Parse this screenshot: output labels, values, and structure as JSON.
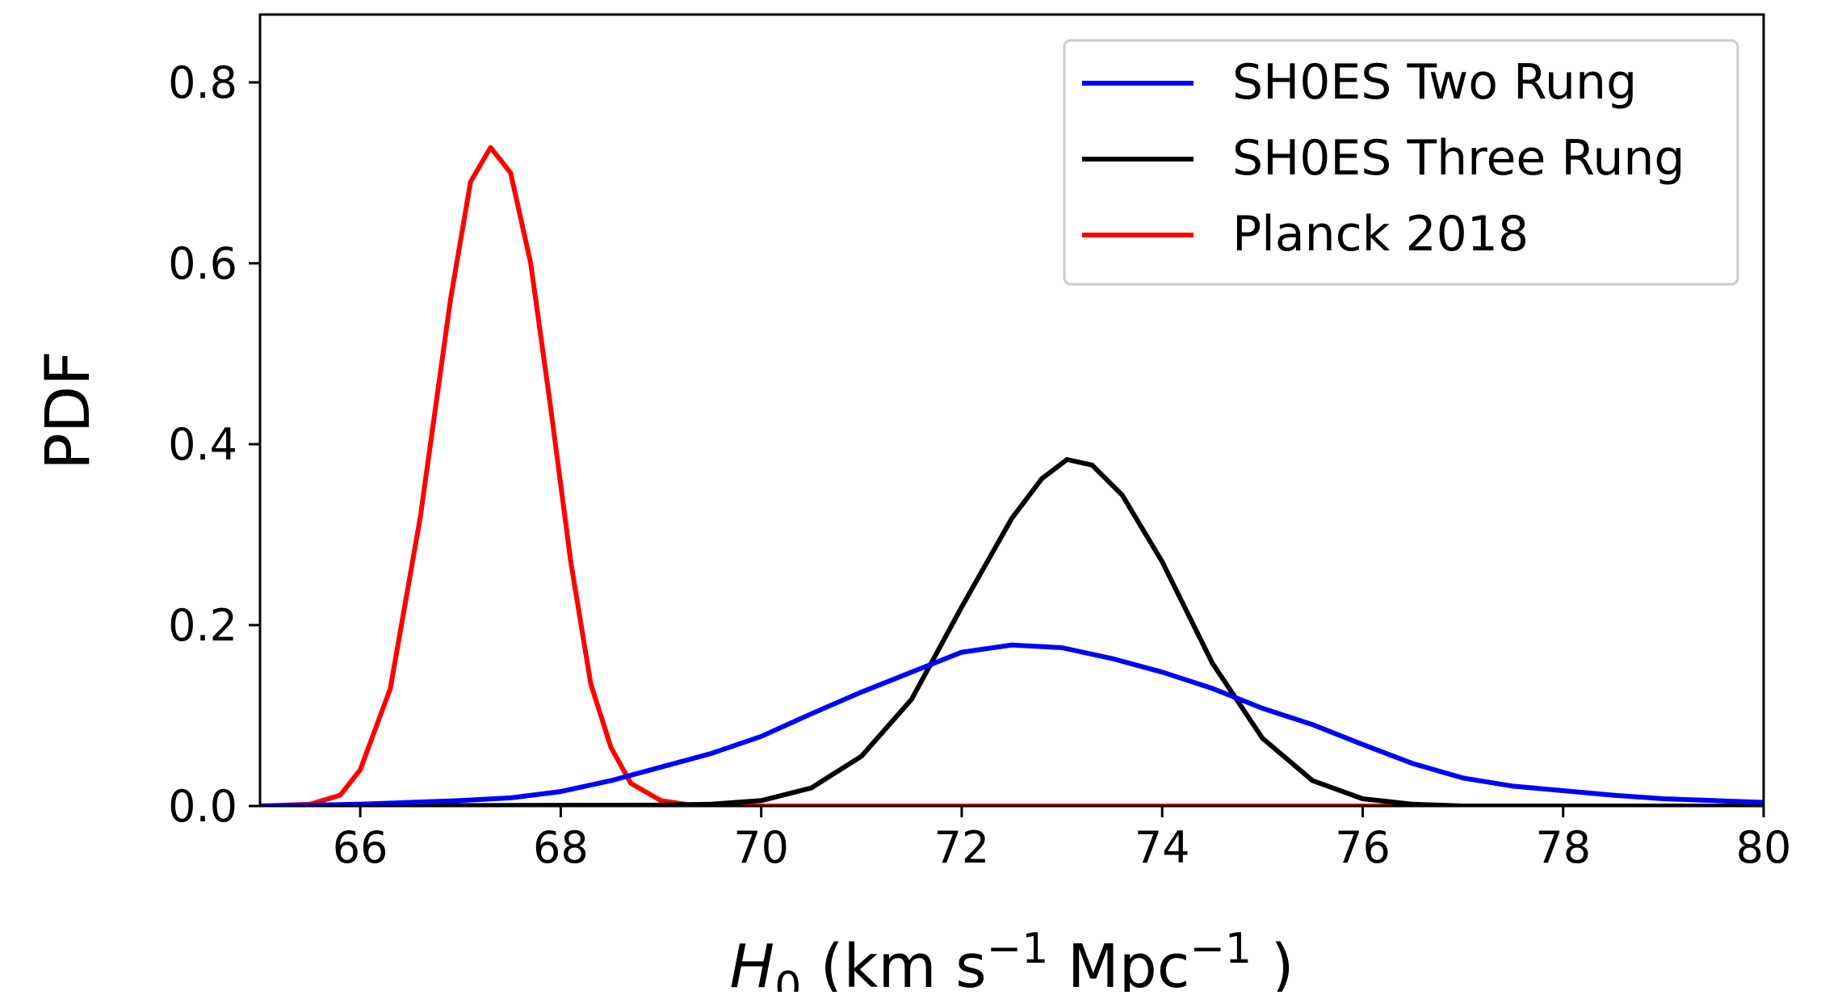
{
  "chart_data": {
    "type": "line",
    "title": "",
    "xlabel": {
      "symbol": "H",
      "subscript": "0",
      "units_open": " (km s",
      "exp1": "−1",
      "units_mid": " Mpc",
      "exp2": "−1",
      "units_close": " )"
    },
    "ylabel": "PDF",
    "xlim": [
      65,
      80
    ],
    "ylim": [
      0,
      0.875
    ],
    "xticks": [
      66,
      68,
      70,
      72,
      74,
      76,
      78,
      80
    ],
    "xtick_labels": [
      "66",
      "68",
      "70",
      "72",
      "74",
      "76",
      "78",
      "80"
    ],
    "yticks": [
      0.0,
      0.2,
      0.4,
      0.6,
      0.8
    ],
    "ytick_labels": [
      "0.0",
      "0.2",
      "0.4",
      "0.6",
      "0.8"
    ],
    "grid": false,
    "legend_position": "top-right",
    "series": [
      {
        "name": "SH0ES Two Rung",
        "color": "#0000ff",
        "x": [
          65,
          66,
          67,
          67.5,
          68,
          68.5,
          69,
          69.5,
          70,
          70.5,
          71,
          71.5,
          72,
          72.5,
          73,
          73.5,
          74,
          74.5,
          75,
          75.5,
          76,
          76.5,
          77,
          77.5,
          78,
          78.5,
          79,
          80
        ],
        "y": [
          0.0,
          0.002,
          0.006,
          0.009,
          0.016,
          0.028,
          0.043,
          0.058,
          0.077,
          0.102,
          0.126,
          0.148,
          0.17,
          0.178,
          0.175,
          0.163,
          0.148,
          0.13,
          0.108,
          0.09,
          0.068,
          0.047,
          0.031,
          0.022,
          0.017,
          0.012,
          0.008,
          0.004
        ]
      },
      {
        "name": "SH0ES Three Rung",
        "color": "#000000",
        "x": [
          65,
          69,
          69.5,
          70,
          70.5,
          71,
          71.5,
          72,
          72.5,
          72.8,
          73.05,
          73.3,
          73.6,
          74,
          74.5,
          75,
          75.5,
          76,
          76.5,
          77,
          80
        ],
        "y": [
          0.0,
          0.001,
          0.002,
          0.006,
          0.02,
          0.055,
          0.118,
          0.22,
          0.318,
          0.362,
          0.383,
          0.377,
          0.344,
          0.27,
          0.158,
          0.075,
          0.028,
          0.008,
          0.002,
          0.0,
          0.0
        ]
      },
      {
        "name": "Planck 2018",
        "color": "#ff0000",
        "x": [
          65,
          65.5,
          65.8,
          66,
          66.3,
          66.6,
          66.9,
          67.1,
          67.3,
          67.5,
          67.7,
          67.9,
          68.1,
          68.3,
          68.5,
          68.7,
          69,
          69.3,
          69.5,
          70,
          75,
          80
        ],
        "y": [
          0.0,
          0.002,
          0.012,
          0.04,
          0.13,
          0.32,
          0.56,
          0.69,
          0.728,
          0.7,
          0.6,
          0.44,
          0.27,
          0.135,
          0.065,
          0.025,
          0.006,
          0.001,
          0.0,
          0.0,
          0.0,
          0.0
        ]
      }
    ]
  }
}
